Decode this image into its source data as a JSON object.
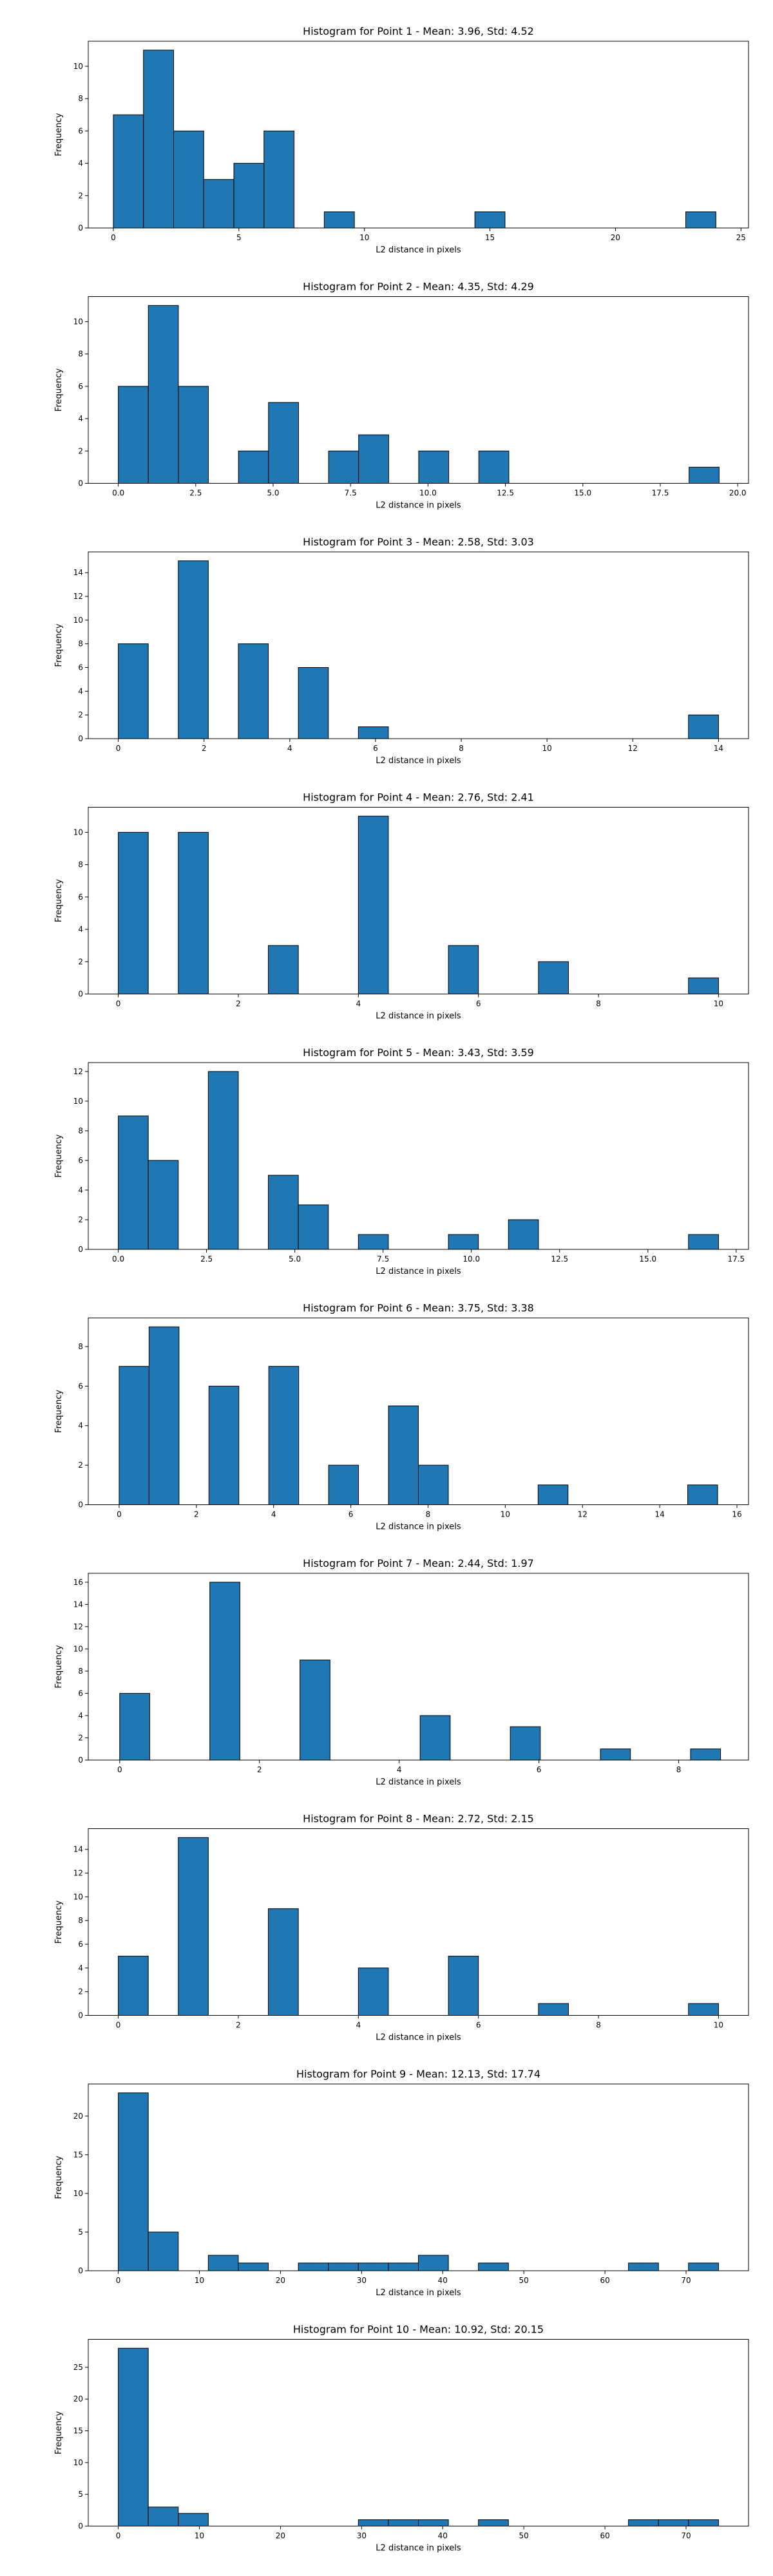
{
  "chart_data": [
    {
      "type": "bar",
      "title": "Histogram for Point 1 - Mean: 3.96, Std: 4.52",
      "xlabel": "L2 distance in pixels",
      "ylabel": "Frequency",
      "xlim": [
        -1.0,
        25.3
      ],
      "ylim": [
        0,
        11.55
      ],
      "xticks": [
        0,
        5,
        10,
        15,
        20,
        25
      ],
      "xtick_labels": [
        "0",
        "5",
        "10",
        "15",
        "20",
        "25"
      ],
      "yticks": [
        0,
        2,
        4,
        6,
        8,
        10
      ],
      "yticks_labels": [
        "0",
        "2",
        "4",
        "6",
        "8",
        "10"
      ],
      "bin_edges": [
        0.0,
        1.2,
        2.4,
        3.6,
        4.8,
        6.0,
        7.2,
        8.4,
        9.6,
        10.8,
        12.0,
        13.2,
        14.4,
        15.6,
        16.8,
        18.0,
        19.2,
        20.4,
        21.6,
        22.8,
        24.0
      ],
      "counts": [
        7,
        11,
        6,
        3,
        4,
        6,
        0,
        1,
        0,
        0,
        0,
        0,
        1,
        0,
        0,
        0,
        0,
        0,
        0,
        1
      ],
      "grid": false
    },
    {
      "type": "bar",
      "title": "Histogram for Point 2 - Mean: 4.35, Std: 4.29",
      "xlabel": "L2 distance in pixels",
      "ylabel": "Frequency",
      "xlim": [
        -0.97,
        20.35
      ],
      "ylim": [
        0,
        11.55
      ],
      "xticks": [
        0,
        2.5,
        5,
        7.5,
        10,
        12.5,
        15,
        17.5,
        20
      ],
      "xtick_labels": [
        "0.0",
        "2.5",
        "5.0",
        "7.5",
        "10.0",
        "12.5",
        "15.0",
        "17.5",
        "20.0"
      ],
      "yticks": [
        0,
        2,
        4,
        6,
        8,
        10
      ],
      "yticks_labels": [
        "0",
        "2",
        "4",
        "6",
        "8",
        "10"
      ],
      "bin_edges": [
        0.0,
        0.97,
        1.94,
        2.91,
        3.88,
        4.85,
        5.82,
        6.79,
        7.76,
        8.73,
        9.7,
        10.67,
        11.64,
        12.61,
        13.58,
        14.55,
        15.52,
        16.49,
        17.46,
        18.43,
        19.4
      ],
      "counts": [
        6,
        11,
        6,
        0,
        2,
        5,
        0,
        2,
        3,
        0,
        2,
        0,
        2,
        0,
        0,
        0,
        0,
        0,
        0,
        1
      ],
      "grid": false
    },
    {
      "type": "bar",
      "title": "Histogram for Point 3 - Mean: 2.58, Std: 3.03",
      "xlabel": "L2 distance in pixels",
      "ylabel": "Frequency",
      "xlim": [
        -0.7,
        14.7
      ],
      "ylim": [
        0,
        15.75
      ],
      "xticks": [
        0,
        2,
        4,
        6,
        8,
        10,
        12,
        14
      ],
      "xtick_labels": [
        "0",
        "2",
        "4",
        "6",
        "8",
        "10",
        "12",
        "14"
      ],
      "yticks": [
        0,
        2,
        4,
        6,
        8,
        10,
        12,
        14
      ],
      "yticks_labels": [
        "0",
        "2",
        "4",
        "6",
        "8",
        "10",
        "12",
        "14"
      ],
      "bin_edges": [
        0.0,
        0.7,
        1.4,
        2.1,
        2.8,
        3.5,
        4.2,
        4.9,
        5.6,
        6.3,
        7.0,
        7.7,
        8.4,
        9.1,
        9.8,
        10.5,
        11.2,
        11.9,
        12.6,
        13.3,
        14.0
      ],
      "counts": [
        8,
        0,
        15,
        0,
        8,
        0,
        6,
        0,
        1,
        0,
        0,
        0,
        0,
        0,
        0,
        0,
        0,
        0,
        0,
        2
      ],
      "grid": false
    },
    {
      "type": "bar",
      "title": "Histogram for Point 4 - Mean: 2.76, Std: 2.41",
      "xlabel": "L2 distance in pixels",
      "ylabel": "Frequency",
      "xlim": [
        -0.5,
        10.5
      ],
      "ylim": [
        0,
        11.55
      ],
      "xticks": [
        0,
        2,
        4,
        6,
        8,
        10
      ],
      "xtick_labels": [
        "0",
        "2",
        "4",
        "6",
        "8",
        "10"
      ],
      "yticks": [
        0,
        2,
        4,
        6,
        8,
        10
      ],
      "yticks_labels": [
        "0",
        "2",
        "4",
        "6",
        "8",
        "10"
      ],
      "bin_edges": [
        0.0,
        0.5,
        1.0,
        1.5,
        2.0,
        2.5,
        3.0,
        3.5,
        4.0,
        4.5,
        5.0,
        5.5,
        6.0,
        6.5,
        7.0,
        7.5,
        8.0,
        8.5,
        9.0,
        9.5,
        10.0
      ],
      "counts": [
        10,
        0,
        10,
        0,
        0,
        3,
        0,
        0,
        11,
        0,
        0,
        3,
        0,
        0,
        2,
        0,
        0,
        0,
        0,
        1
      ],
      "grid": false
    },
    {
      "type": "bar",
      "title": "Histogram for Point 5 - Mean: 3.43, Std: 3.59",
      "xlabel": "L2 distance in pixels",
      "ylabel": "Frequency",
      "xlim": [
        -0.85,
        17.85
      ],
      "ylim": [
        0,
        12.6
      ],
      "xticks": [
        0,
        2.5,
        5,
        7.5,
        10,
        12.5,
        15,
        17.5
      ],
      "xtick_labels": [
        "0.0",
        "2.5",
        "5.0",
        "7.5",
        "10.0",
        "12.5",
        "15.0",
        "17.5"
      ],
      "yticks": [
        0,
        2,
        4,
        6,
        8,
        10,
        12
      ],
      "yticks_labels": [
        "0",
        "2",
        "4",
        "6",
        "8",
        "10",
        "12"
      ],
      "bin_edges": [
        0.0,
        0.85,
        1.7,
        2.55,
        3.4,
        4.25,
        5.1,
        5.95,
        6.8,
        7.65,
        8.5,
        9.35,
        10.2,
        11.05,
        11.9,
        12.75,
        13.6,
        14.45,
        15.3,
        16.15,
        17.0
      ],
      "counts": [
        9,
        6,
        0,
        12,
        0,
        5,
        3,
        0,
        1,
        0,
        0,
        1,
        0,
        2,
        0,
        0,
        0,
        0,
        0,
        1
      ],
      "grid": false
    },
    {
      "type": "bar",
      "title": "Histogram for Point 6 - Mean: 3.75, Std: 3.38",
      "xlabel": "L2 distance in pixels",
      "ylabel": "Frequency",
      "xlim": [
        -0.8,
        16.3
      ],
      "ylim": [
        0,
        9.45
      ],
      "xticks": [
        0,
        2,
        4,
        6,
        8,
        10,
        12,
        14,
        16
      ],
      "xtick_labels": [
        "0",
        "2",
        "4",
        "6",
        "8",
        "10",
        "12",
        "14",
        "16"
      ],
      "yticks": [
        0,
        2,
        4,
        6,
        8
      ],
      "yticks_labels": [
        "0",
        "2",
        "4",
        "6",
        "8"
      ],
      "bin_edges": [
        0.0,
        0.775,
        1.55,
        2.325,
        3.1,
        3.875,
        4.65,
        5.425,
        6.2,
        6.975,
        7.75,
        8.525,
        9.3,
        10.075,
        10.85,
        11.625,
        12.4,
        13.175,
        13.95,
        14.725,
        15.5
      ],
      "counts": [
        7,
        9,
        0,
        6,
        0,
        7,
        0,
        2,
        0,
        5,
        2,
        0,
        0,
        0,
        1,
        0,
        0,
        0,
        0,
        1
      ],
      "grid": false
    },
    {
      "type": "bar",
      "title": "Histogram for Point 7 - Mean: 2.44, Std: 1.97",
      "xlabel": "L2 distance in pixels",
      "ylabel": "Frequency",
      "xlim": [
        -0.45,
        9.0
      ],
      "ylim": [
        0,
        16.8
      ],
      "xticks": [
        0,
        2,
        4,
        6,
        8
      ],
      "xtick_labels": [
        "0",
        "2",
        "4",
        "6",
        "8"
      ],
      "yticks": [
        0,
        2,
        4,
        6,
        8,
        10,
        12,
        14,
        16
      ],
      "yticks_labels": [
        "0",
        "2",
        "4",
        "6",
        "8",
        "10",
        "12",
        "14",
        "16"
      ],
      "bin_edges": [
        0.0,
        0.43,
        0.86,
        1.29,
        1.72,
        2.15,
        2.58,
        3.01,
        3.44,
        3.87,
        4.3,
        4.73,
        5.16,
        5.59,
        6.02,
        6.45,
        6.88,
        7.31,
        7.74,
        8.17,
        8.6
      ],
      "counts": [
        6,
        0,
        0,
        16,
        0,
        0,
        9,
        0,
        0,
        0,
        4,
        0,
        0,
        3,
        0,
        0,
        1,
        0,
        0,
        1
      ],
      "grid": false
    },
    {
      "type": "bar",
      "title": "Histogram for Point 8 - Mean: 2.72, Std: 2.15",
      "xlabel": "L2 distance in pixels",
      "ylabel": "Frequency",
      "xlim": [
        -0.5,
        10.5
      ],
      "ylim": [
        0,
        15.75
      ],
      "xticks": [
        0,
        2,
        4,
        6,
        8,
        10
      ],
      "xtick_labels": [
        "0",
        "2",
        "4",
        "6",
        "8",
        "10"
      ],
      "yticks": [
        0,
        2,
        4,
        6,
        8,
        10,
        12,
        14
      ],
      "yticks_labels": [
        "0",
        "2",
        "4",
        "6",
        "8",
        "10",
        "12",
        "14"
      ],
      "bin_edges": [
        0.0,
        0.5,
        1.0,
        1.5,
        2.0,
        2.5,
        3.0,
        3.5,
        4.0,
        4.5,
        5.0,
        5.5,
        6.0,
        6.5,
        7.0,
        7.5,
        8.0,
        8.5,
        9.0,
        9.5,
        10.0
      ],
      "counts": [
        5,
        0,
        15,
        0,
        0,
        9,
        0,
        0,
        4,
        0,
        0,
        5,
        0,
        0,
        1,
        0,
        0,
        0,
        0,
        1
      ],
      "grid": false
    },
    {
      "type": "bar",
      "title": "Histogram for Point 9 - Mean: 12.13, Std: 17.74",
      "xlabel": "L2 distance in pixels",
      "ylabel": "Frequency",
      "xlim": [
        -3.7,
        77.7
      ],
      "ylim": [
        0,
        24.15
      ],
      "xticks": [
        0,
        10,
        20,
        30,
        40,
        50,
        60,
        70
      ],
      "xtick_labels": [
        "0",
        "10",
        "20",
        "30",
        "40",
        "50",
        "60",
        "70"
      ],
      "yticks": [
        0,
        5,
        10,
        15,
        20
      ],
      "yticks_labels": [
        "0",
        "5",
        "10",
        "15",
        "20"
      ],
      "bin_edges": [
        0.0,
        3.7,
        7.4,
        11.1,
        14.8,
        18.5,
        22.2,
        25.9,
        29.6,
        33.3,
        37.0,
        40.7,
        44.4,
        48.1,
        51.8,
        55.5,
        59.2,
        62.9,
        66.6,
        70.3,
        74.0
      ],
      "counts": [
        23,
        5,
        0,
        2,
        1,
        0,
        1,
        1,
        1,
        1,
        2,
        0,
        1,
        0,
        0,
        0,
        0,
        1,
        0,
        1
      ],
      "grid": false
    },
    {
      "type": "bar",
      "title": "Histogram for Point 10 - Mean: 10.92, Std: 20.15",
      "xlabel": "L2 distance in pixels",
      "ylabel": "Frequency",
      "xlim": [
        -3.7,
        77.7
      ],
      "ylim": [
        0,
        29.4
      ],
      "xticks": [
        0,
        10,
        20,
        30,
        40,
        50,
        60,
        70
      ],
      "xtick_labels": [
        "0",
        "10",
        "20",
        "30",
        "40",
        "50",
        "60",
        "70"
      ],
      "yticks": [
        0,
        5,
        10,
        15,
        20,
        25
      ],
      "yticks_labels": [
        "0",
        "5",
        "10",
        "15",
        "20",
        "25"
      ],
      "bin_edges": [
        0.0,
        3.7,
        7.4,
        11.1,
        14.8,
        18.5,
        22.2,
        25.9,
        29.6,
        33.3,
        37.0,
        40.7,
        44.4,
        48.1,
        51.8,
        55.5,
        59.2,
        62.9,
        66.6,
        70.3,
        74.0
      ],
      "counts": [
        28,
        3,
        2,
        0,
        0,
        0,
        0,
        0,
        1,
        1,
        1,
        0,
        1,
        0,
        0,
        0,
        0,
        1,
        1,
        1
      ],
      "grid": false
    }
  ]
}
